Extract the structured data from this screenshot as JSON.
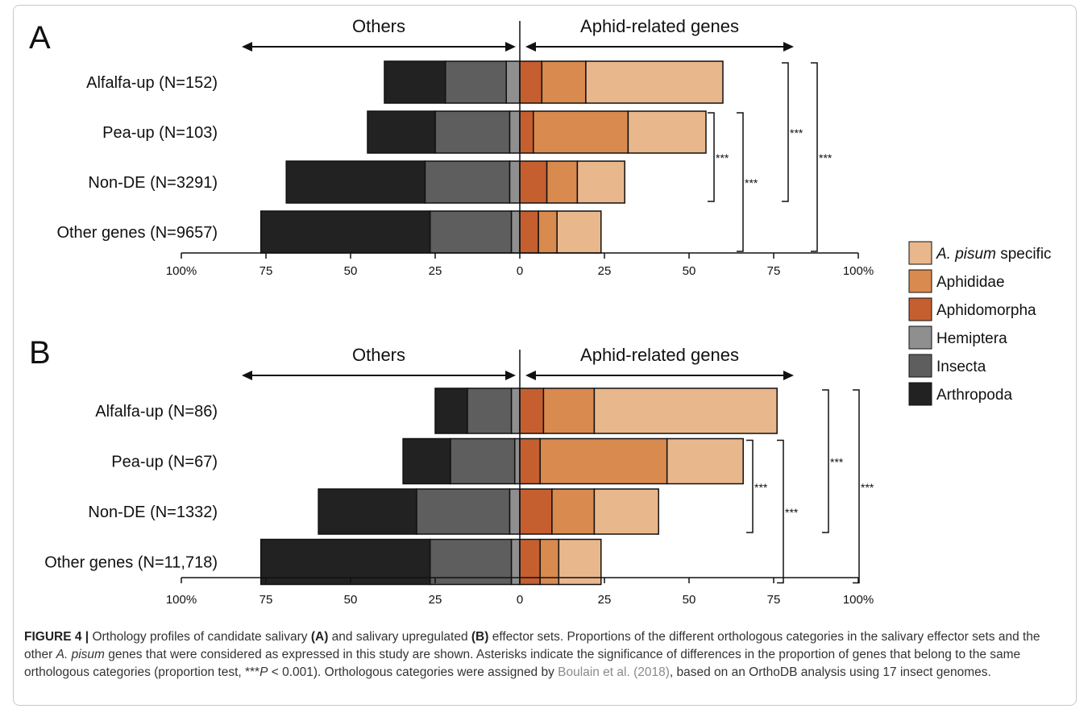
{
  "chart_data": [
    {
      "type": "bar",
      "panel": "A",
      "orientation": "horizontal-diverging",
      "left_header": "Others",
      "right_header": "Aphid-related genes",
      "categories": [
        "Alfalfa-up (N=152)",
        "Pea-up (N=103)",
        "Non-DE (N=3291)",
        "Other genes (N=9657)"
      ],
      "left_series": [
        {
          "name": "Hemiptera",
          "values": [
            4,
            3,
            3,
            2.5
          ]
        },
        {
          "name": "Insecta",
          "values": [
            18,
            22,
            25,
            24
          ]
        },
        {
          "name": "Arthropoda",
          "values": [
            18,
            20,
            41,
            50
          ]
        }
      ],
      "right_series": [
        {
          "name": "Aphidomorpha",
          "values": [
            6.5,
            4,
            8,
            5.5
          ]
        },
        {
          "name": "Aphididae",
          "values": [
            13,
            28,
            9,
            5.5
          ]
        },
        {
          "name": "A. pisum specific",
          "values": [
            40.5,
            23,
            14,
            13
          ]
        }
      ],
      "ticks": [
        "100%",
        "75",
        "50",
        "25",
        "0",
        "25",
        "50",
        "75",
        "100%"
      ],
      "xlim": [
        -100,
        100
      ],
      "significance": [
        {
          "pair": [
            "Pea-up (N=103)",
            "Non-DE (N=3291)"
          ],
          "label": "***"
        },
        {
          "pair": [
            "Pea-up (N=103)",
            "Other genes (N=9657)"
          ],
          "label": "***"
        },
        {
          "pair": [
            "Alfalfa-up (N=152)",
            "Non-DE (N=3291)"
          ],
          "label": "***"
        },
        {
          "pair": [
            "Alfalfa-up (N=152)",
            "Other genes (N=9657)"
          ],
          "label": "***"
        }
      ]
    },
    {
      "type": "bar",
      "panel": "B",
      "orientation": "horizontal-diverging",
      "left_header": "Others",
      "right_header": "Aphid-related genes",
      "categories": [
        "Alfalfa-up (N=86)",
        "Pea-up (N=67)",
        "Non-DE (N=1332)",
        "Other genes (N=11,718)"
      ],
      "left_series": [
        {
          "name": "Hemiptera",
          "values": [
            2.5,
            1.5,
            3,
            2.5
          ]
        },
        {
          "name": "Insecta",
          "values": [
            13,
            19,
            27.5,
            24
          ]
        },
        {
          "name": "Arthropoda",
          "values": [
            9.5,
            14,
            29,
            50
          ]
        }
      ],
      "right_series": [
        {
          "name": "Aphidomorpha",
          "values": [
            7,
            6,
            9.5,
            6
          ]
        },
        {
          "name": "Aphididae",
          "values": [
            15,
            37.5,
            12.5,
            5.5
          ]
        },
        {
          "name": "A. pisum specific",
          "values": [
            54,
            22.5,
            19,
            12.5
          ]
        }
      ],
      "ticks": [
        "100%",
        "75",
        "50",
        "25",
        "0",
        "25",
        "50",
        "75",
        "100%"
      ],
      "xlim": [
        -100,
        100
      ],
      "significance": [
        {
          "pair": [
            "Pea-up (N=67)",
            "Non-DE (N=1332)"
          ],
          "label": "***"
        },
        {
          "pair": [
            "Pea-up (N=67)",
            "Other genes (N=11,718)"
          ],
          "label": "***"
        },
        {
          "pair": [
            "Alfalfa-up (N=86)",
            "Non-DE (N=1332)"
          ],
          "label": "***"
        },
        {
          "pair": [
            "Alfalfa-up (N=86)",
            "Other genes (N=11,718)"
          ],
          "label": "***"
        }
      ]
    }
  ],
  "panel_letters": [
    "A",
    "B"
  ],
  "legend": {
    "placement": "right",
    "items": [
      {
        "prefix": "A. pisum",
        "suffix": " specific",
        "color": "#e8b78c"
      },
      {
        "prefix": "",
        "suffix": "Aphididae",
        "color": "#d98a4e"
      },
      {
        "prefix": "",
        "suffix": "Aphidomorpha",
        "color": "#c55f30"
      },
      {
        "prefix": "",
        "suffix": "Hemiptera",
        "color": "#8f8f8f"
      },
      {
        "prefix": "",
        "suffix": "Insecta",
        "color": "#5e5e5e"
      },
      {
        "prefix": "",
        "suffix": "Arthropoda",
        "color": "#222222"
      }
    ]
  },
  "colors": {
    "A. pisum specific": "#e8b78c",
    "Aphididae": "#d98a4e",
    "Aphidomorpha": "#c55f30",
    "Hemiptera": "#8f8f8f",
    "Insecta": "#5e5e5e",
    "Arthropoda": "#222222"
  },
  "caption": {
    "label": "FIGURE 4 |",
    "t1": " Orthology profiles of candidate salivary ",
    "b1": "(A)",
    "t2": " and salivary upregulated ",
    "b2": "(B)",
    "t3": " effector sets. Proportions of the different orthologous categories in the salivary effector sets and the other ",
    "i1": "A. pisum",
    "t4": " genes that were considered as expressed in this study are shown. Asterisks indicate the significance of differences in the proportion of genes that belong to the same orthologous categories (proportion test, ***",
    "i2": "P",
    "t5": " < 0.001). Orthologous categories were assigned by ",
    "ref": "Boulain et al. (2018)",
    "t6": ", based on an OrthoDB analysis using 17 insect genomes."
  }
}
